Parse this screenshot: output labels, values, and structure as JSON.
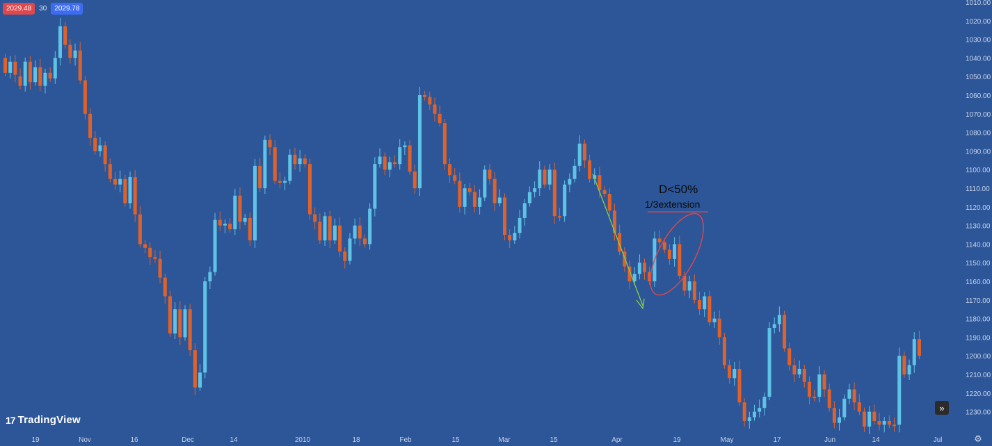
{
  "bid_ask": {
    "bid": "2029.48",
    "spread": "30",
    "ask": "2029.78"
  },
  "logo": {
    "mark": "17",
    "text": "TradingView"
  },
  "annotation": {
    "title": "D<50%",
    "subtitle": "1/3extension"
  },
  "icons": {
    "scroll": "double-chevron-right-icon",
    "settings": "gear-icon"
  },
  "colors": {
    "background": "#2c5698",
    "up": "#5fc3e6",
    "down": "#e0622a",
    "arrow": "#8ccf45",
    "ellipse": "#e0474c"
  },
  "chart_data": {
    "type": "candlestick",
    "y_axis": {
      "inverted": true,
      "range": [
        1010,
        1240
      ],
      "ticks": [
        "1010.00",
        "1020.00",
        "1030.00",
        "1040.00",
        "1050.00",
        "1060.00",
        "1070.00",
        "1080.00",
        "1090.00",
        "1100.00",
        "1110.00",
        "1120.00",
        "1130.00",
        "1140.00",
        "1150.00",
        "1160.00",
        "1170.00",
        "1180.00",
        "1190.00",
        "1200.00",
        "1210.00",
        "1220.00",
        "1230.00"
      ]
    },
    "x_axis": {
      "ticks": [
        "19",
        "Nov",
        "16",
        "Dec",
        "14",
        "2010",
        "18",
        "Feb",
        "15",
        "Mar",
        "15",
        "Apr",
        "19",
        "May",
        "17",
        "Jun",
        "14",
        "Jul"
      ]
    },
    "grid": false,
    "candles_approx": [
      {
        "o": 1040,
        "c": 1048
      },
      {
        "o": 1048,
        "c": 1042
      },
      {
        "o": 1042,
        "c": 1049
      },
      {
        "o": 1050,
        "c": 1055
      },
      {
        "o": 1055,
        "c": 1042
      },
      {
        "o": 1042,
        "c": 1053
      },
      {
        "o": 1053,
        "c": 1045
      },
      {
        "o": 1045,
        "c": 1055
      },
      {
        "o": 1055,
        "c": 1048
      },
      {
        "o": 1048,
        "c": 1051
      },
      {
        "o": 1051,
        "c": 1040
      },
      {
        "o": 1040,
        "c": 1023
      },
      {
        "o": 1023,
        "c": 1033
      },
      {
        "o": 1033,
        "c": 1040
      },
      {
        "o": 1040,
        "c": 1036
      },
      {
        "o": 1036,
        "c": 1052
      },
      {
        "o": 1052,
        "c": 1070
      },
      {
        "o": 1070,
        "c": 1083
      },
      {
        "o": 1083,
        "c": 1090
      },
      {
        "o": 1090,
        "c": 1087
      },
      {
        "o": 1087,
        "c": 1097
      },
      {
        "o": 1097,
        "c": 1105
      },
      {
        "o": 1105,
        "c": 1108
      },
      {
        "o": 1108,
        "c": 1105
      },
      {
        "o": 1105,
        "c": 1118
      },
      {
        "o": 1118,
        "c": 1104
      },
      {
        "o": 1104,
        "c": 1124
      },
      {
        "o": 1124,
        "c": 1140
      },
      {
        "o": 1140,
        "c": 1142
      },
      {
        "o": 1142,
        "c": 1147
      },
      {
        "o": 1147,
        "c": 1148
      },
      {
        "o": 1148,
        "c": 1158
      },
      {
        "o": 1158,
        "c": 1168
      },
      {
        "o": 1168,
        "c": 1188
      },
      {
        "o": 1188,
        "c": 1175
      },
      {
        "o": 1175,
        "c": 1190
      },
      {
        "o": 1190,
        "c": 1175
      },
      {
        "o": 1175,
        "c": 1197
      },
      {
        "o": 1197,
        "c": 1217
      },
      {
        "o": 1217,
        "c": 1209
      },
      {
        "o": 1209,
        "c": 1160
      },
      {
        "o": 1160,
        "c": 1155
      },
      {
        "o": 1155,
        "c": 1127
      },
      {
        "o": 1127,
        "c": 1130
      },
      {
        "o": 1130,
        "c": 1129
      },
      {
        "o": 1129,
        "c": 1132
      },
      {
        "o": 1132,
        "c": 1114
      },
      {
        "o": 1114,
        "c": 1128
      },
      {
        "o": 1128,
        "c": 1126
      },
      {
        "o": 1126,
        "c": 1138
      },
      {
        "o": 1138,
        "c": 1098
      },
      {
        "o": 1098,
        "c": 1110
      },
      {
        "o": 1110,
        "c": 1084
      },
      {
        "o": 1084,
        "c": 1088
      },
      {
        "o": 1088,
        "c": 1106
      },
      {
        "o": 1106,
        "c": 1107
      },
      {
        "o": 1107,
        "c": 1106
      },
      {
        "o": 1106,
        "c": 1092
      },
      {
        "o": 1092,
        "c": 1097
      },
      {
        "o": 1097,
        "c": 1094
      },
      {
        "o": 1094,
        "c": 1097
      },
      {
        "o": 1097,
        "c": 1124
      },
      {
        "o": 1124,
        "c": 1128
      },
      {
        "o": 1128,
        "c": 1138
      },
      {
        "o": 1138,
        "c": 1125
      },
      {
        "o": 1125,
        "c": 1138
      },
      {
        "o": 1138,
        "c": 1130
      },
      {
        "o": 1130,
        "c": 1144
      },
      {
        "o": 1144,
        "c": 1149
      },
      {
        "o": 1149,
        "c": 1137
      },
      {
        "o": 1137,
        "c": 1130
      },
      {
        "o": 1130,
        "c": 1137
      },
      {
        "o": 1137,
        "c": 1140
      },
      {
        "o": 1140,
        "c": 1121
      },
      {
        "o": 1121,
        "c": 1097
      },
      {
        "o": 1097,
        "c": 1093
      },
      {
        "o": 1093,
        "c": 1100
      },
      {
        "o": 1100,
        "c": 1096
      },
      {
        "o": 1096,
        "c": 1097
      },
      {
        "o": 1097,
        "c": 1088
      },
      {
        "o": 1088,
        "c": 1087
      },
      {
        "o": 1087,
        "c": 1101
      },
      {
        "o": 1101,
        "c": 1110
      },
      {
        "o": 1110,
        "c": 1060
      },
      {
        "o": 1060,
        "c": 1061
      },
      {
        "o": 1061,
        "c": 1065
      },
      {
        "o": 1065,
        "c": 1070
      },
      {
        "o": 1070,
        "c": 1075
      },
      {
        "o": 1075,
        "c": 1097
      },
      {
        "o": 1097,
        "c": 1103
      },
      {
        "o": 1103,
        "c": 1106
      },
      {
        "o": 1106,
        "c": 1120
      },
      {
        "o": 1120,
        "c": 1110
      },
      {
        "o": 1110,
        "c": 1112
      },
      {
        "o": 1112,
        "c": 1120
      },
      {
        "o": 1120,
        "c": 1115
      },
      {
        "o": 1115,
        "c": 1100
      },
      {
        "o": 1100,
        "c": 1105
      },
      {
        "o": 1105,
        "c": 1118
      },
      {
        "o": 1118,
        "c": 1115
      },
      {
        "o": 1115,
        "c": 1135
      },
      {
        "o": 1135,
        "c": 1138
      },
      {
        "o": 1138,
        "c": 1134
      },
      {
        "o": 1134,
        "c": 1126
      },
      {
        "o": 1126,
        "c": 1118
      },
      {
        "o": 1118,
        "c": 1112
      },
      {
        "o": 1112,
        "c": 1110
      },
      {
        "o": 1110,
        "c": 1100
      },
      {
        "o": 1100,
        "c": 1108
      },
      {
        "o": 1108,
        "c": 1100
      },
      {
        "o": 1100,
        "c": 1125
      },
      {
        "o": 1125,
        "c": 1125
      },
      {
        "o": 1125,
        "c": 1108
      },
      {
        "o": 1108,
        "c": 1105
      },
      {
        "o": 1105,
        "c": 1098
      },
      {
        "o": 1098,
        "c": 1086
      },
      {
        "o": 1086,
        "c": 1095
      },
      {
        "o": 1095,
        "c": 1105
      },
      {
        "o": 1105,
        "c": 1103
      },
      {
        "o": 1103,
        "c": 1111
      },
      {
        "o": 1111,
        "c": 1113
      },
      {
        "o": 1113,
        "c": 1122
      },
      {
        "o": 1122,
        "c": 1134
      },
      {
        "o": 1134,
        "c": 1144
      },
      {
        "o": 1144,
        "c": 1152
      },
      {
        "o": 1152,
        "c": 1160
      },
      {
        "o": 1160,
        "c": 1156
      },
      {
        "o": 1156,
        "c": 1150
      },
      {
        "o": 1150,
        "c": 1155
      },
      {
        "o": 1155,
        "c": 1160
      },
      {
        "o": 1160,
        "c": 1137
      },
      {
        "o": 1137,
        "c": 1139
      },
      {
        "o": 1139,
        "c": 1143
      },
      {
        "o": 1143,
        "c": 1148
      },
      {
        "o": 1148,
        "c": 1140
      },
      {
        "o": 1140,
        "c": 1157
      },
      {
        "o": 1157,
        "c": 1165
      },
      {
        "o": 1165,
        "c": 1160
      },
      {
        "o": 1160,
        "c": 1170
      },
      {
        "o": 1170,
        "c": 1175
      },
      {
        "o": 1175,
        "c": 1168
      },
      {
        "o": 1168,
        "c": 1182
      },
      {
        "o": 1182,
        "c": 1180
      },
      {
        "o": 1180,
        "c": 1190
      },
      {
        "o": 1190,
        "c": 1205
      },
      {
        "o": 1205,
        "c": 1212
      },
      {
        "o": 1212,
        "c": 1207
      },
      {
        "o": 1207,
        "c": 1225
      },
      {
        "o": 1225,
        "c": 1235
      },
      {
        "o": 1235,
        "c": 1233
      },
      {
        "o": 1233,
        "c": 1230
      },
      {
        "o": 1230,
        "c": 1228
      },
      {
        "o": 1228,
        "c": 1222
      },
      {
        "o": 1222,
        "c": 1185
      },
      {
        "o": 1185,
        "c": 1183
      },
      {
        "o": 1183,
        "c": 1178
      },
      {
        "o": 1178,
        "c": 1196
      },
      {
        "o": 1196,
        "c": 1205
      },
      {
        "o": 1205,
        "c": 1210
      },
      {
        "o": 1210,
        "c": 1207
      },
      {
        "o": 1207,
        "c": 1214
      },
      {
        "o": 1214,
        "c": 1222
      },
      {
        "o": 1222,
        "c": 1222
      },
      {
        "o": 1222,
        "c": 1210
      },
      {
        "o": 1210,
        "c": 1218
      },
      {
        "o": 1218,
        "c": 1228
      },
      {
        "o": 1228,
        "c": 1236
      },
      {
        "o": 1236,
        "c": 1233
      },
      {
        "o": 1233,
        "c": 1223
      },
      {
        "o": 1223,
        "c": 1218
      },
      {
        "o": 1218,
        "c": 1225
      },
      {
        "o": 1225,
        "c": 1230
      },
      {
        "o": 1230,
        "c": 1238
      },
      {
        "o": 1238,
        "c": 1230
      },
      {
        "o": 1230,
        "c": 1235
      },
      {
        "o": 1235,
        "c": 1237
      },
      {
        "o": 1237,
        "c": 1235
      },
      {
        "o": 1235,
        "c": 1237
      },
      {
        "o": 1237,
        "c": 1237
      },
      {
        "o": 1237,
        "c": 1200
      },
      {
        "o": 1200,
        "c": 1210
      },
      {
        "o": 1210,
        "c": 1205
      },
      {
        "o": 1205,
        "c": 1191
      },
      {
        "o": 1191,
        "c": 1200
      }
    ]
  }
}
